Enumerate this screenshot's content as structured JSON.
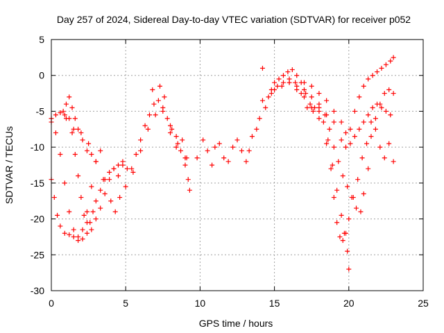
{
  "chart_data": {
    "type": "scatter",
    "title": "Day 257 of 2024, Sidereal Day-to-day VTEC variation (SDTVAR) for receiver p052",
    "xlabel": "GPS time / hours",
    "ylabel": "SDTVAR / TECUs",
    "xlim": [
      0,
      25
    ],
    "ylim": [
      -30,
      5
    ],
    "xticks": [
      0,
      5,
      10,
      15,
      20,
      25
    ],
    "yticks": [
      -30,
      -25,
      -20,
      -15,
      -10,
      -5,
      0,
      5
    ],
    "xtick_labels": [
      "0",
      "5",
      "10",
      "15",
      "20",
      "25"
    ],
    "ytick_labels": [
      "-30",
      "-25",
      "-20",
      "-15",
      "-10",
      "-5",
      "0",
      "5"
    ],
    "grid": true,
    "legend": "none",
    "marker": "plus",
    "color": "#ff0000",
    "series": [
      {
        "points": [
          [
            0.0,
            -6.5
          ],
          [
            0.3,
            -8.0
          ],
          [
            0.6,
            -11.0
          ],
          [
            0.9,
            -15.0
          ],
          [
            1.2,
            -19.0
          ],
          [
            1.5,
            -21.5
          ],
          [
            1.8,
            -22.5
          ],
          [
            2.1,
            -21.5
          ],
          [
            2.4,
            -19.0
          ],
          [
            2.7,
            -15.5
          ],
          [
            3.0,
            -12.0
          ],
          [
            3.3,
            -10.5
          ],
          [
            0.0,
            -14.5
          ],
          [
            0.2,
            -17.0
          ],
          [
            0.4,
            -19.5
          ],
          [
            0.6,
            -21.0
          ],
          [
            0.9,
            -22.0
          ],
          [
            1.2,
            -22.2
          ],
          [
            1.5,
            -22.5
          ],
          [
            1.8,
            -23.0
          ],
          [
            2.1,
            -22.8
          ],
          [
            2.4,
            -22.0
          ],
          [
            2.7,
            -21.5
          ],
          [
            3.0,
            -20.0
          ],
          [
            3.3,
            -18.5
          ],
          [
            3.6,
            -16.5
          ],
          [
            3.9,
            -14.5
          ],
          [
            4.2,
            -13.0
          ],
          [
            4.5,
            -12.5
          ],
          [
            4.8,
            -12.0
          ],
          [
            5.1,
            -13.0
          ],
          [
            5.4,
            -13.0
          ],
          [
            5.7,
            -11.0
          ],
          [
            6.0,
            -9.0
          ],
          [
            6.3,
            -7.0
          ],
          [
            6.6,
            -5.5
          ],
          [
            6.9,
            -4.0
          ],
          [
            7.2,
            -3.5
          ],
          [
            7.5,
            -4.5
          ],
          [
            7.8,
            -6.0
          ],
          [
            8.1,
            -7.5
          ],
          [
            8.4,
            -8.5
          ],
          [
            8.7,
            -10.5
          ],
          [
            9.0,
            -12.5
          ],
          [
            9.2,
            -14.5
          ],
          [
            0.0,
            -6.0
          ],
          [
            0.3,
            -5.5
          ],
          [
            0.6,
            -5.2
          ],
          [
            0.9,
            -5.5
          ],
          [
            1.2,
            -6.0
          ],
          [
            1.4,
            -8.0
          ],
          [
            1.6,
            -11.0
          ],
          [
            1.8,
            -14.0
          ],
          [
            2.0,
            -17.0
          ],
          [
            2.2,
            -19.5
          ],
          [
            2.4,
            -20.5
          ],
          [
            2.6,
            -20.5
          ],
          [
            2.8,
            -19.0
          ],
          [
            3.0,
            -17.5
          ],
          [
            3.3,
            -16.0
          ],
          [
            3.6,
            -14.5
          ],
          [
            3.9,
            -13.5
          ],
          [
            4.2,
            -13.0
          ],
          [
            4.5,
            -14.0
          ],
          [
            4.8,
            -12.5
          ],
          [
            0.8,
            -5.0
          ],
          [
            1.0,
            -4.0
          ],
          [
            1.2,
            -3.0
          ],
          [
            1.4,
            -4.5
          ],
          [
            1.6,
            -6.0
          ],
          [
            1.8,
            -7.5
          ],
          [
            2.1,
            -9.0
          ],
          [
            2.4,
            -10.5
          ],
          [
            2.7,
            -11.0
          ],
          [
            1.0,
            -6.0
          ],
          [
            1.5,
            -7.5
          ],
          [
            2.0,
            -8.0
          ],
          [
            2.5,
            -9.5
          ],
          [
            3.0,
            -12.0
          ],
          [
            3.5,
            -14.5
          ],
          [
            4.0,
            -17.5
          ],
          [
            4.3,
            -19.0
          ],
          [
            4.6,
            -17.0
          ],
          [
            5.0,
            -15.5
          ],
          [
            5.5,
            -13.5
          ],
          [
            6.0,
            -10.5
          ],
          [
            6.5,
            -7.5
          ],
          [
            7.0,
            -5.5
          ],
          [
            7.5,
            -5.0
          ],
          [
            8.0,
            -7.0
          ],
          [
            8.5,
            -9.5
          ],
          [
            9.0,
            -11.5
          ],
          [
            9.3,
            -16.0
          ],
          [
            6.8,
            -2.0
          ],
          [
            7.3,
            -1.5
          ],
          [
            7.6,
            -3.0
          ],
          [
            8.0,
            -8.0
          ],
          [
            8.4,
            -10.0
          ],
          [
            8.8,
            -9.0
          ],
          [
            9.1,
            -11.5
          ],
          [
            9.8,
            -11.5
          ],
          [
            10.2,
            -9.0
          ],
          [
            10.5,
            -10.5
          ],
          [
            10.8,
            -12.5
          ],
          [
            11.0,
            -10.0
          ],
          [
            11.3,
            -9.5
          ],
          [
            11.6,
            -11.5
          ],
          [
            11.9,
            -12.0
          ],
          [
            12.2,
            -10.0
          ],
          [
            12.5,
            -9.0
          ],
          [
            12.8,
            -10.5
          ],
          [
            13.1,
            -12.0
          ],
          [
            13.3,
            -10.5
          ],
          [
            13.5,
            -8.5
          ],
          [
            13.8,
            -7.5
          ],
          [
            14.0,
            -6.0
          ],
          [
            14.2,
            -3.5
          ],
          [
            14.4,
            -4.5
          ],
          [
            14.6,
            -3.0
          ],
          [
            14.8,
            -2.0
          ],
          [
            15.0,
            -1.0
          ],
          [
            15.3,
            -0.5
          ],
          [
            15.6,
            0.0
          ],
          [
            15.9,
            0.5
          ],
          [
            16.2,
            0.8
          ],
          [
            16.5,
            0.0
          ],
          [
            16.8,
            -1.0
          ],
          [
            17.1,
            -2.5
          ],
          [
            17.4,
            -4.0
          ],
          [
            17.7,
            -4.5
          ],
          [
            18.0,
            -5.0
          ],
          [
            18.3,
            -6.5
          ],
          [
            18.6,
            -9.0
          ],
          [
            18.9,
            -12.5
          ],
          [
            19.2,
            -16.0
          ],
          [
            19.5,
            -19.5
          ],
          [
            19.7,
            -22.0
          ],
          [
            19.9,
            -24.5
          ],
          [
            20.0,
            -27.0
          ],
          [
            14.2,
            1.0
          ],
          [
            14.8,
            -2.5
          ],
          [
            15.2,
            -1.5
          ],
          [
            15.6,
            -1.0
          ],
          [
            16.0,
            -0.5
          ],
          [
            16.4,
            -1.0
          ],
          [
            16.8,
            -2.5
          ],
          [
            17.2,
            -4.5
          ],
          [
            17.6,
            -5.0
          ],
          [
            18.0,
            -4.5
          ],
          [
            18.4,
            -5.5
          ],
          [
            18.7,
            -7.5
          ],
          [
            19.0,
            -10.0
          ],
          [
            19.3,
            -12.0
          ],
          [
            19.6,
            -14.0
          ],
          [
            19.9,
            -15.5
          ],
          [
            20.2,
            -17.0
          ],
          [
            20.5,
            -18.5
          ],
          [
            20.8,
            -19.0
          ],
          [
            21.0,
            -16.5
          ],
          [
            21.3,
            -13.0
          ],
          [
            15.0,
            -2.0
          ],
          [
            15.5,
            -1.5
          ],
          [
            16.0,
            -1.0
          ],
          [
            16.5,
            -2.0
          ],
          [
            17.0,
            -3.0
          ],
          [
            17.5,
            -4.5
          ],
          [
            18.0,
            -6.0
          ],
          [
            18.5,
            -9.5
          ],
          [
            18.8,
            -13.0
          ],
          [
            19.0,
            -17.0
          ],
          [
            19.2,
            -20.5
          ],
          [
            19.4,
            -22.5
          ],
          [
            19.6,
            -23.0
          ],
          [
            19.8,
            -22.0
          ],
          [
            20.0,
            -20.0
          ],
          [
            20.3,
            -17.0
          ],
          [
            20.6,
            -14.5
          ],
          [
            20.9,
            -11.5
          ],
          [
            21.2,
            -9.5
          ],
          [
            21.5,
            -8.5
          ],
          [
            21.8,
            -6.0
          ],
          [
            22.1,
            -4.0
          ],
          [
            22.4,
            -2.5
          ],
          [
            22.7,
            -2.0
          ],
          [
            23.0,
            -2.5
          ],
          [
            16.0,
            -1.0
          ],
          [
            16.5,
            -1.5
          ],
          [
            17.0,
            -2.0
          ],
          [
            17.5,
            -3.0
          ],
          [
            18.0,
            -4.0
          ],
          [
            18.5,
            -5.5
          ],
          [
            19.0,
            -6.5
          ],
          [
            19.5,
            -9.0
          ],
          [
            19.8,
            -10.0
          ],
          [
            20.1,
            -9.5
          ],
          [
            20.4,
            -8.5
          ],
          [
            20.7,
            -7.5
          ],
          [
            21.0,
            -6.5
          ],
          [
            21.3,
            -5.5
          ],
          [
            21.6,
            -4.5
          ],
          [
            21.9,
            -4.0
          ],
          [
            22.2,
            -4.5
          ],
          [
            22.5,
            -5.0
          ],
          [
            22.8,
            -5.5
          ],
          [
            17.0,
            -1.0
          ],
          [
            17.5,
            -1.5
          ],
          [
            18.0,
            -2.5
          ],
          [
            18.5,
            -3.5
          ],
          [
            19.0,
            -5.0
          ],
          [
            19.5,
            -6.5
          ],
          [
            19.8,
            -8.0
          ],
          [
            20.1,
            -7.5
          ],
          [
            20.4,
            -5.0
          ],
          [
            20.7,
            -3.0
          ],
          [
            21.0,
            -1.5
          ],
          [
            21.3,
            -0.5
          ],
          [
            21.6,
            0.0
          ],
          [
            21.9,
            0.5
          ],
          [
            22.2,
            1.0
          ],
          [
            22.5,
            1.5
          ],
          [
            22.8,
            2.0
          ],
          [
            23.0,
            2.5
          ],
          [
            21.5,
            -6.5
          ],
          [
            21.8,
            -7.5
          ],
          [
            22.1,
            -10.0
          ],
          [
            22.4,
            -11.5
          ],
          [
            22.7,
            -9.5
          ],
          [
            23.0,
            -12.0
          ]
        ]
      }
    ]
  }
}
